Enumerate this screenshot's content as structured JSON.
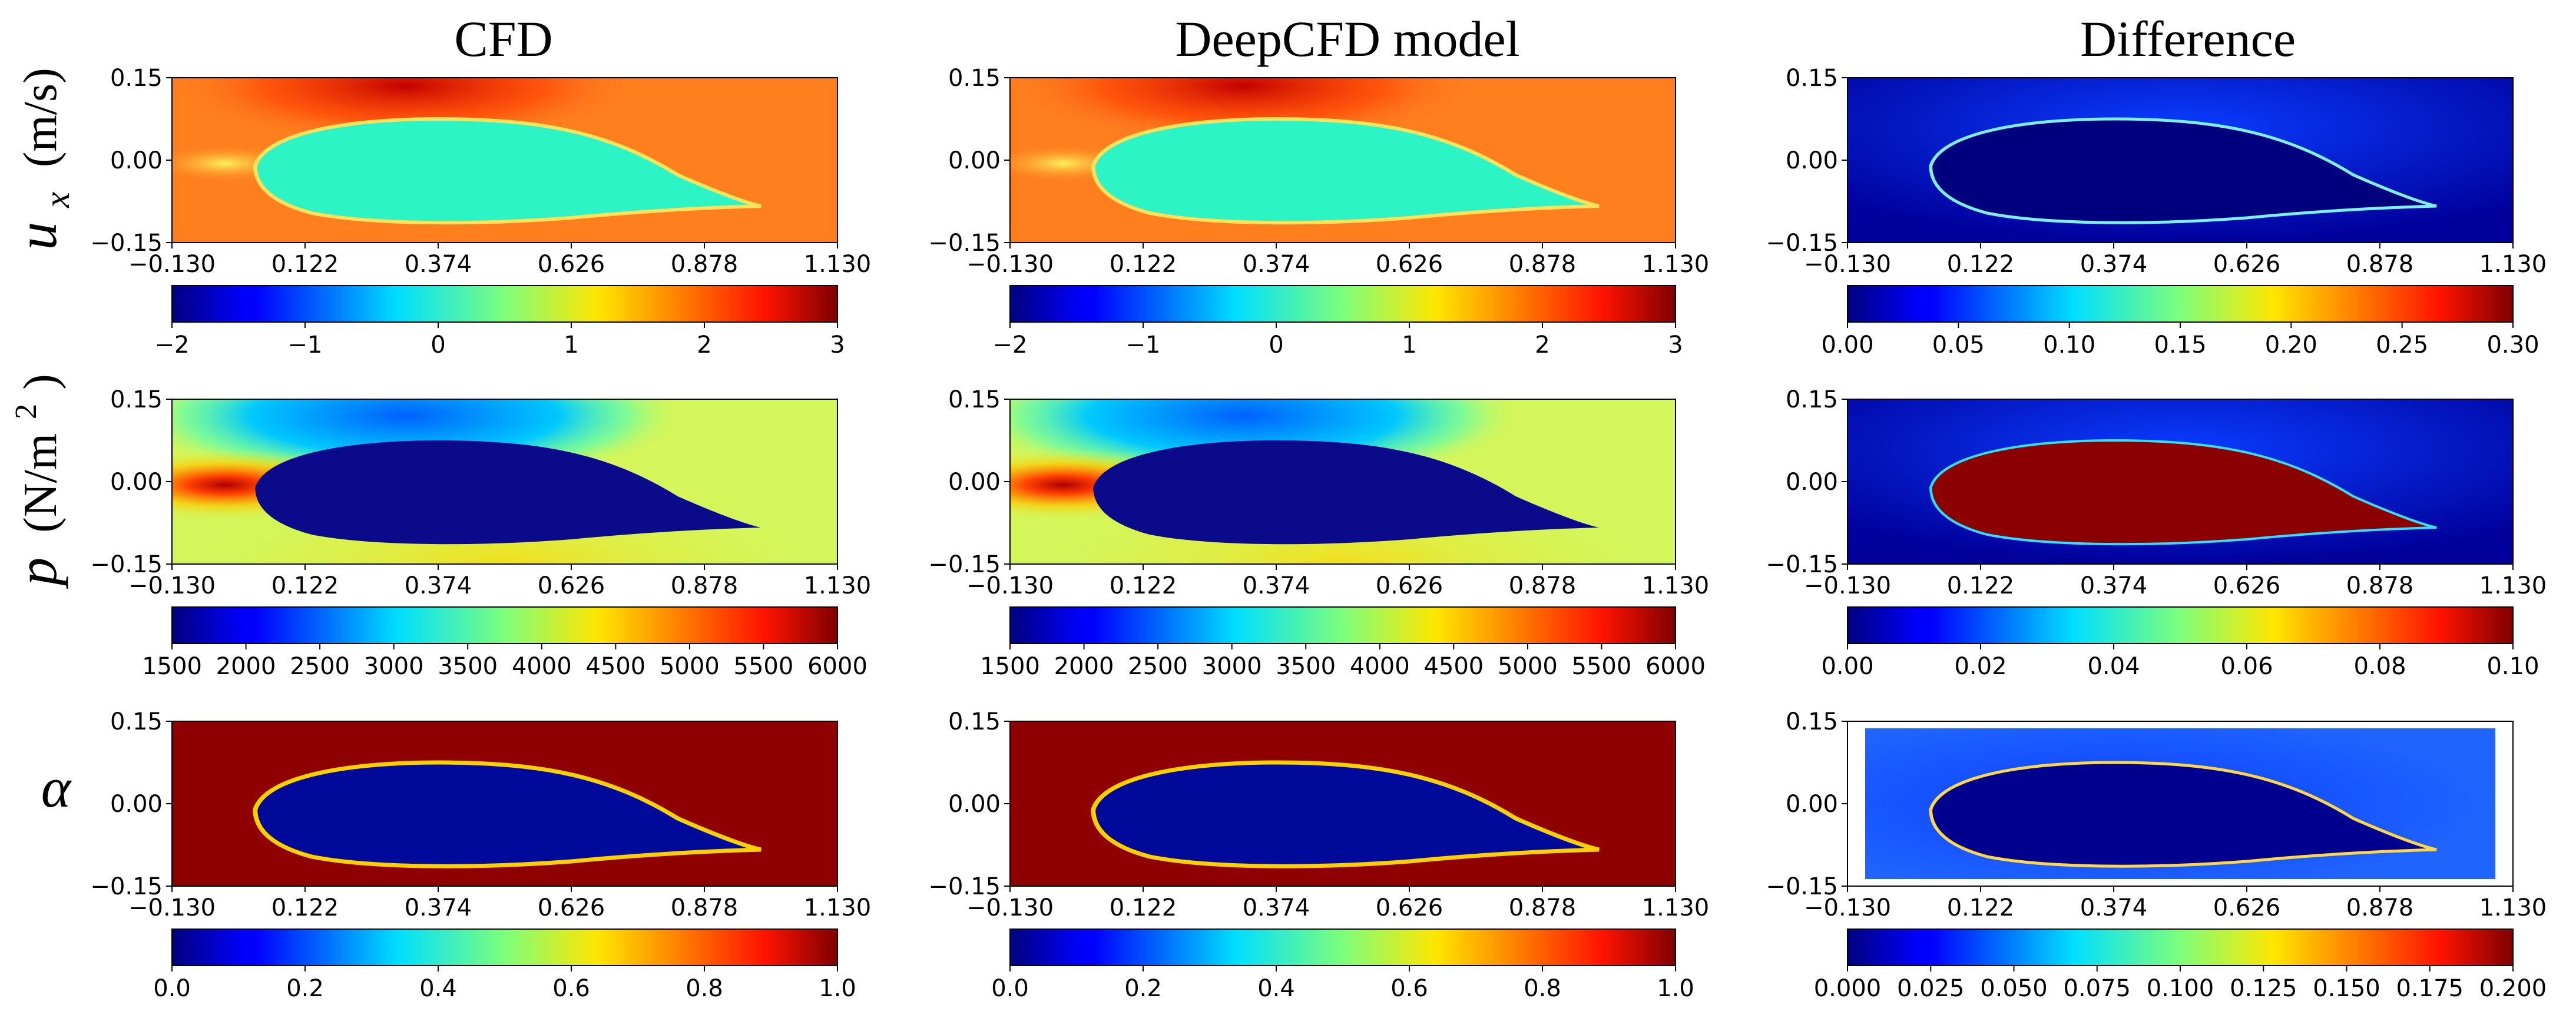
{
  "figure": {
    "column_titles": [
      "CFD",
      "DeepCFD model",
      "Difference"
    ],
    "row_labels": [
      {
        "symbol": "u",
        "subscript": "x",
        "unit": "(m/s)"
      },
      {
        "symbol": "p",
        "unit": "(N/m",
        "superscript": "2",
        "unit_close": ")"
      },
      {
        "symbol": "α"
      }
    ],
    "colormap": "jet",
    "colors": {
      "farfield_ux": "#ff7e1e",
      "body_ux": "#2cf4c4",
      "farfield_p": "#d4f65a",
      "body_p": "#0a0a8a",
      "farfield_alpha": "#8f0000",
      "body_alpha": "#000a9a",
      "diff_ux_body": "#00007f",
      "diff_p_body": "#8b0000",
      "diff_alpha_bg": "#1f53ff"
    }
  },
  "chart_data": [
    {
      "type": "heatmap",
      "row": 0,
      "col": 0,
      "field": "ux",
      "xlim": [
        -0.13,
        1.13
      ],
      "ylim": [
        -0.15,
        0.15
      ],
      "xticks": [
        "−0.130",
        "0.122",
        "0.374",
        "0.626",
        "0.878",
        "1.130"
      ],
      "yticks": [
        "0.15",
        "0.00",
        "−0.15"
      ],
      "colorbar": {
        "range": [
          -2,
          3
        ],
        "ticks": [
          "−2",
          "−1",
          "0",
          "1",
          "2",
          "3"
        ]
      }
    },
    {
      "type": "heatmap",
      "row": 0,
      "col": 1,
      "field": "ux",
      "xlim": [
        -0.13,
        1.13
      ],
      "ylim": [
        -0.15,
        0.15
      ],
      "xticks": [
        "−0.130",
        "0.122",
        "0.374",
        "0.626",
        "0.878",
        "1.130"
      ],
      "yticks": [
        "0.15",
        "0.00",
        "−0.15"
      ],
      "colorbar": {
        "range": [
          -2,
          3
        ],
        "ticks": [
          "−2",
          "−1",
          "0",
          "1",
          "2",
          "3"
        ]
      }
    },
    {
      "type": "heatmap",
      "row": 0,
      "col": 2,
      "field": "ux_difference",
      "xlim": [
        -0.13,
        1.13
      ],
      "ylim": [
        -0.15,
        0.15
      ],
      "xticks": [
        "−0.130",
        "0.122",
        "0.374",
        "0.626",
        "0.878",
        "1.130"
      ],
      "yticks": [
        "0.15",
        "0.00",
        "−0.15"
      ],
      "colorbar": {
        "range": [
          0,
          0.3
        ],
        "ticks": [
          "0.00",
          "0.05",
          "0.10",
          "0.15",
          "0.20",
          "0.25",
          "0.30"
        ]
      }
    },
    {
      "type": "heatmap",
      "row": 1,
      "col": 0,
      "field": "p",
      "xlim": [
        -0.13,
        1.13
      ],
      "ylim": [
        -0.15,
        0.15
      ],
      "xticks": [
        "−0.130",
        "0.122",
        "0.374",
        "0.626",
        "0.878",
        "1.130"
      ],
      "yticks": [
        "0.15",
        "0.00",
        "−0.15"
      ],
      "colorbar": {
        "range": [
          1500,
          6000
        ],
        "ticks": [
          "1500",
          "2000",
          "2500",
          "3000",
          "3500",
          "4000",
          "4500",
          "5000",
          "5500",
          "6000"
        ]
      }
    },
    {
      "type": "heatmap",
      "row": 1,
      "col": 1,
      "field": "p",
      "xlim": [
        -0.13,
        1.13
      ],
      "ylim": [
        -0.15,
        0.15
      ],
      "xticks": [
        "−0.130",
        "0.122",
        "0.374",
        "0.626",
        "0.878",
        "1.130"
      ],
      "yticks": [
        "0.15",
        "0.00",
        "−0.15"
      ],
      "colorbar": {
        "range": [
          1500,
          6000
        ],
        "ticks": [
          "1500",
          "2000",
          "2500",
          "3000",
          "3500",
          "4000",
          "4500",
          "5000",
          "5500",
          "6000"
        ]
      }
    },
    {
      "type": "heatmap",
      "row": 1,
      "col": 2,
      "field": "p_difference",
      "xlim": [
        -0.13,
        1.13
      ],
      "ylim": [
        -0.15,
        0.15
      ],
      "xticks": [
        "−0.130",
        "0.122",
        "0.374",
        "0.626",
        "0.878",
        "1.130"
      ],
      "yticks": [
        "0.15",
        "0.00",
        "−0.15"
      ],
      "colorbar": {
        "range": [
          0,
          0.1
        ],
        "ticks": [
          "0.00",
          "0.02",
          "0.04",
          "0.06",
          "0.08",
          "0.10"
        ]
      }
    },
    {
      "type": "heatmap",
      "row": 2,
      "col": 0,
      "field": "alpha",
      "xlim": [
        -0.13,
        1.13
      ],
      "ylim": [
        -0.15,
        0.15
      ],
      "xticks": [
        "−0.130",
        "0.122",
        "0.374",
        "0.626",
        "0.878",
        "1.130"
      ],
      "yticks": [
        "0.15",
        "0.00",
        "−0.15"
      ],
      "colorbar": {
        "range": [
          0,
          1
        ],
        "ticks": [
          "0.0",
          "0.2",
          "0.4",
          "0.6",
          "0.8",
          "1.0"
        ]
      }
    },
    {
      "type": "heatmap",
      "row": 2,
      "col": 1,
      "field": "alpha",
      "xlim": [
        -0.13,
        1.13
      ],
      "ylim": [
        -0.15,
        0.15
      ],
      "xticks": [
        "−0.130",
        "0.122",
        "0.374",
        "0.626",
        "0.878",
        "1.130"
      ],
      "yticks": [
        "0.15",
        "0.00",
        "−0.15"
      ],
      "colorbar": {
        "range": [
          0,
          1
        ],
        "ticks": [
          "0.0",
          "0.2",
          "0.4",
          "0.6",
          "0.8",
          "1.0"
        ]
      }
    },
    {
      "type": "heatmap",
      "row": 2,
      "col": 2,
      "field": "alpha_difference",
      "xlim": [
        -0.13,
        1.13
      ],
      "ylim": [
        -0.15,
        0.15
      ],
      "xticks": [
        "−0.130",
        "0.122",
        "0.374",
        "0.626",
        "0.878",
        "1.130"
      ],
      "yticks": [
        "0.15",
        "0.00",
        "−0.15"
      ],
      "colorbar": {
        "range": [
          0,
          0.2
        ],
        "ticks": [
          "0.000",
          "0.025",
          "0.050",
          "0.075",
          "0.100",
          "0.125",
          "0.150",
          "0.175",
          "0.200"
        ]
      }
    }
  ]
}
